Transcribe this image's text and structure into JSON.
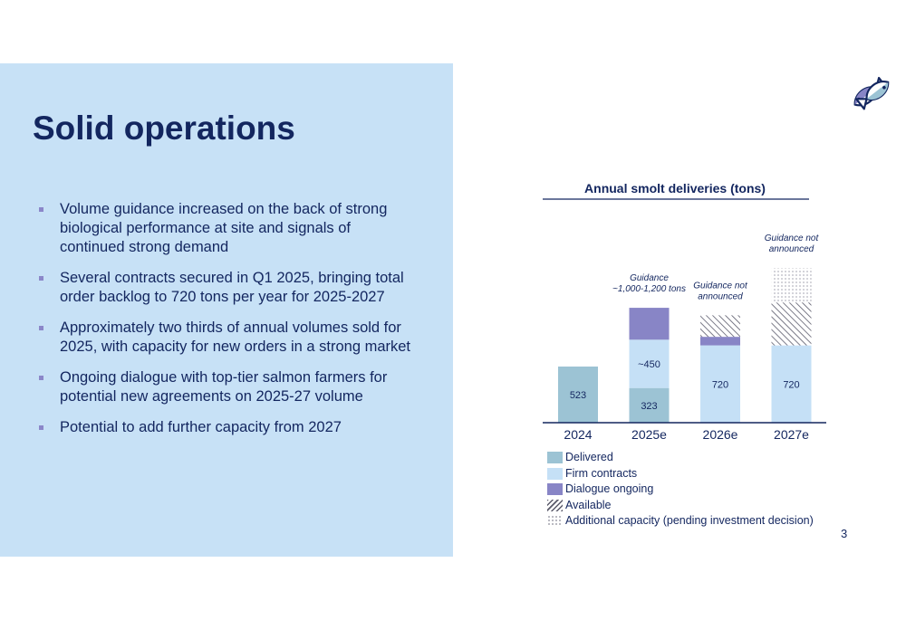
{
  "slide": {
    "title": "Solid operations",
    "page_number": "3",
    "logo": "twin-fish-logo-icon"
  },
  "bullets": [
    "Volume guidance increased on the back of strong biological performance at site and signals of continued strong demand",
    "Several contracts secured in Q1 2025, bringing total order backlog to 720 tons per year for 2025-2027",
    "Approximately two thirds of annual volumes sold for 2025, with capacity for new orders in a strong market",
    "Ongoing dialogue with top-tier salmon farmers for potential new agreements on 2025-27 volume",
    "Potential to add further capacity from 2027"
  ],
  "colors": {
    "navy": "#13265f",
    "panel": "#c7e1f6",
    "bullet": "#8b87c9",
    "delivered": "#9cc3d4",
    "firm": "#c5e0f6",
    "dialogue": "#8885c6",
    "available_hatch": "#5b5b6b",
    "additional_dots": "#7b7b8b"
  },
  "chart_data": {
    "type": "bar",
    "stacked": true,
    "title": "Annual smolt deliveries (tons)",
    "categories": [
      "2024",
      "2025e",
      "2026e",
      "2027e"
    ],
    "series": [
      {
        "name": "Delivered",
        "values": [
          523,
          323,
          0,
          0
        ]
      },
      {
        "name": "Firm contracts",
        "values": [
          0,
          450,
          720,
          720
        ]
      },
      {
        "name": "Dialogue ongoing",
        "values": [
          0,
          297,
          80,
          0
        ]
      },
      {
        "name": "Available",
        "values": [
          0,
          0,
          200,
          400
        ]
      },
      {
        "name": "Additional capacity (pending investment decision)",
        "values": [
          0,
          0,
          0,
          320
        ]
      }
    ],
    "data_labels": [
      {
        "category": "2024",
        "series": "Delivered",
        "text": "523"
      },
      {
        "category": "2025e",
        "series": "Delivered",
        "text": "323"
      },
      {
        "category": "2025e",
        "series": "Firm contracts",
        "text": "~450"
      },
      {
        "category": "2026e",
        "series": "Firm contracts",
        "text": "720"
      },
      {
        "category": "2027e",
        "series": "Firm contracts",
        "text": "720"
      }
    ],
    "annotations": [
      {
        "category": "2025e",
        "lines": [
          "Guidance",
          "~1,000-1,200 tons"
        ]
      },
      {
        "category": "2026e",
        "lines": [
          "Guidance not",
          "announced"
        ]
      },
      {
        "category": "2027e",
        "lines": [
          "Guidance not",
          "announced"
        ]
      }
    ],
    "legend": [
      {
        "label": "Delivered",
        "style": "solid",
        "color": "#9cc3d4"
      },
      {
        "label": "Firm contracts",
        "style": "solid",
        "color": "#c5e0f6"
      },
      {
        "label": "Dialogue ongoing",
        "style": "solid",
        "color": "#8885c6"
      },
      {
        "label": "Available",
        "style": "hatch",
        "color": "#5b5b6b"
      },
      {
        "label": "Additional capacity (pending investment decision)",
        "style": "dots",
        "color": "#7b7b8b"
      }
    ],
    "legend_position": "bottom-left",
    "ylim": [
      0,
      1450
    ],
    "grid": false,
    "y_axis_visible": false
  }
}
